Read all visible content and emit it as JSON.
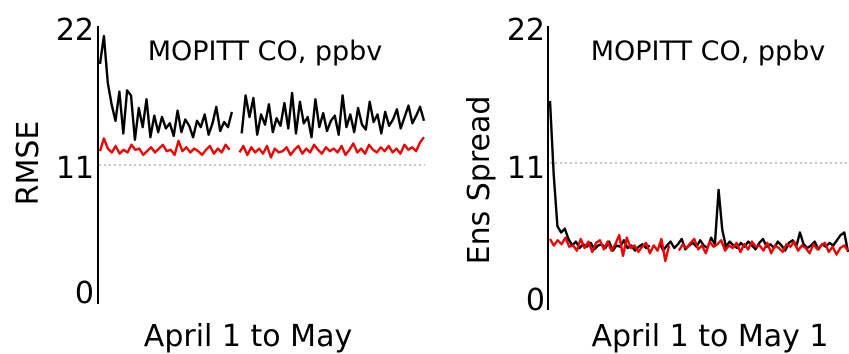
{
  "chart_data": [
    {
      "type": "line",
      "title": "MOPITT CO, ppbv",
      "xlabel": "April 1 to May",
      "ylabel": "RMSE",
      "ylim": [
        0,
        22
      ],
      "yticks": [
        "0",
        "11",
        "22"
      ],
      "reference_line": 11,
      "grid": false,
      "series": [
        {
          "color": "#000000",
          "segments": [
            [
              19.0,
              21.2,
              17.5,
              15.8,
              14.5,
              16.8,
              13.5,
              16.9,
              16.5,
              13.0,
              15.5,
              14.0,
              16.2,
              13.2,
              14.9,
              13.6,
              14.8,
              13.9,
              14.3,
              13.3,
              15.3,
              13.6,
              14.6,
              14.1,
              13.2,
              14.5,
              14.0,
              15.0,
              13.4,
              14.3,
              15.6,
              13.7,
              14.4,
              14.0,
              15.2
            ],
            [
              13.5,
              16.5,
              14.8,
              16.3,
              13.4,
              15.0,
              14.2,
              15.8,
              13.6,
              14.7,
              14.1,
              15.9,
              13.9,
              16.7,
              13.5,
              16.0,
              14.3,
              14.8,
              13.2,
              16.2,
              14.0,
              15.1,
              13.7,
              14.5,
              14.9,
              13.4,
              16.5,
              14.0,
              15.0,
              13.6,
              15.5,
              14.2,
              13.8,
              16.0,
              14.4,
              15.0,
              13.5,
              15.2,
              14.1,
              14.6,
              15.4,
              13.9,
              14.8,
              15.7,
              14.3,
              14.9,
              15.6,
              14.5
            ]
          ]
        },
        {
          "color": "#ee0000",
          "segments": [
            [
              12.1,
              13.1,
              12.3,
              12.0,
              12.5,
              11.9,
              12.2,
              12.0,
              12.6,
              12.2,
              12.3,
              11.8,
              12.1,
              12.4,
              12.0,
              12.3,
              12.6,
              12.1,
              12.2,
              11.8,
              12.9,
              12.1,
              12.4,
              12.0,
              12.3,
              12.1,
              11.8,
              12.2,
              12.5,
              11.9,
              12.3,
              12.0,
              12.6,
              12.2
            ],
            [
              12.0,
              12.5,
              11.8,
              12.4,
              12.0,
              12.3,
              11.9,
              12.5,
              11.6,
              12.3,
              12.0,
              12.1,
              12.4,
              11.8,
              12.2,
              12.5,
              11.9,
              12.3,
              12.0,
              12.6,
              12.2,
              11.9,
              12.4,
              12.1,
              12.3,
              12.0,
              12.5,
              11.8,
              12.2,
              12.7,
              12.0,
              12.3,
              11.9,
              12.6,
              12.2,
              12.0,
              12.4,
              12.1,
              12.5,
              12.0,
              12.3,
              11.9,
              12.6,
              12.2,
              12.4,
              12.1,
              12.8,
              13.2
            ]
          ]
        }
      ]
    },
    {
      "type": "line",
      "title": "MOPITT CO, ppbv",
      "xlabel": "April 1 to May 1",
      "ylabel": "Ens Spread",
      "ylim": [
        0,
        22
      ],
      "yticks": [
        "0",
        "11",
        "22"
      ],
      "reference_line": 11,
      "grid": false,
      "series": [
        {
          "color": "#000000",
          "segments": [
            [
              16.2,
              10.5,
              6.5,
              6.0,
              6.3,
              5.5,
              5.0,
              5.3,
              4.8,
              5.1,
              4.9,
              5.2,
              4.7,
              5.0,
              5.1,
              4.8,
              5.3,
              4.6,
              5.0,
              4.9,
              5.4,
              4.8,
              5.0,
              4.6,
              4.9,
              5.1,
              4.8,
              5.0
            ],
            [
              5.2,
              4.6,
              5.0,
              5.3,
              4.8,
              5.1,
              5.5,
              4.7,
              5.0,
              5.2,
              4.9,
              5.4,
              5.0,
              4.8,
              5.6,
              5.1,
              9.3,
              6.2,
              4.9,
              5.3,
              5.0,
              4.8,
              5.2,
              4.9,
              5.3,
              5.0,
              4.7,
              5.2,
              5.5,
              4.9,
              5.1,
              4.8,
              5.3,
              5.0,
              4.6,
              5.2,
              5.4,
              4.9,
              6.0,
              5.1,
              4.8,
              5.0,
              5.3,
              4.7,
              5.1,
              4.9,
              5.2,
              5.0,
              5.4,
              5.8,
              6.0,
              4.5
            ]
          ]
        },
        {
          "color": "#ee0000",
          "segments": [
            [
              5.5,
              5.0,
              5.4,
              5.1,
              5.6,
              4.9,
              5.0,
              4.6,
              5.5,
              4.8,
              5.3,
              4.5,
              5.2,
              5.4,
              4.7,
              5.3,
              4.6,
              5.1,
              5.8,
              4.2,
              5.6,
              4.8,
              5.0,
              4.5,
              4.9,
              5.2,
              4.4,
              5.0,
              4.6,
              5.5,
              3.8,
              5.0
            ],
            [
              4.6,
              5.1,
              4.8,
              5.2,
              5.5,
              4.7,
              5.0,
              4.4,
              5.3,
              4.9,
              5.1,
              5.4,
              4.6,
              5.0,
              4.8,
              5.2,
              4.5,
              5.1,
              4.7,
              5.3,
              4.9,
              5.0,
              4.6,
              5.2,
              4.4,
              5.0,
              4.8,
              4.5,
              5.1,
              4.9,
              5.3,
              4.6,
              5.0,
              4.8,
              4.4,
              5.1,
              4.7,
              5.0,
              5.2,
              4.5,
              4.9,
              4.3,
              4.8,
              5.0,
              4.6
            ]
          ]
        }
      ]
    }
  ]
}
